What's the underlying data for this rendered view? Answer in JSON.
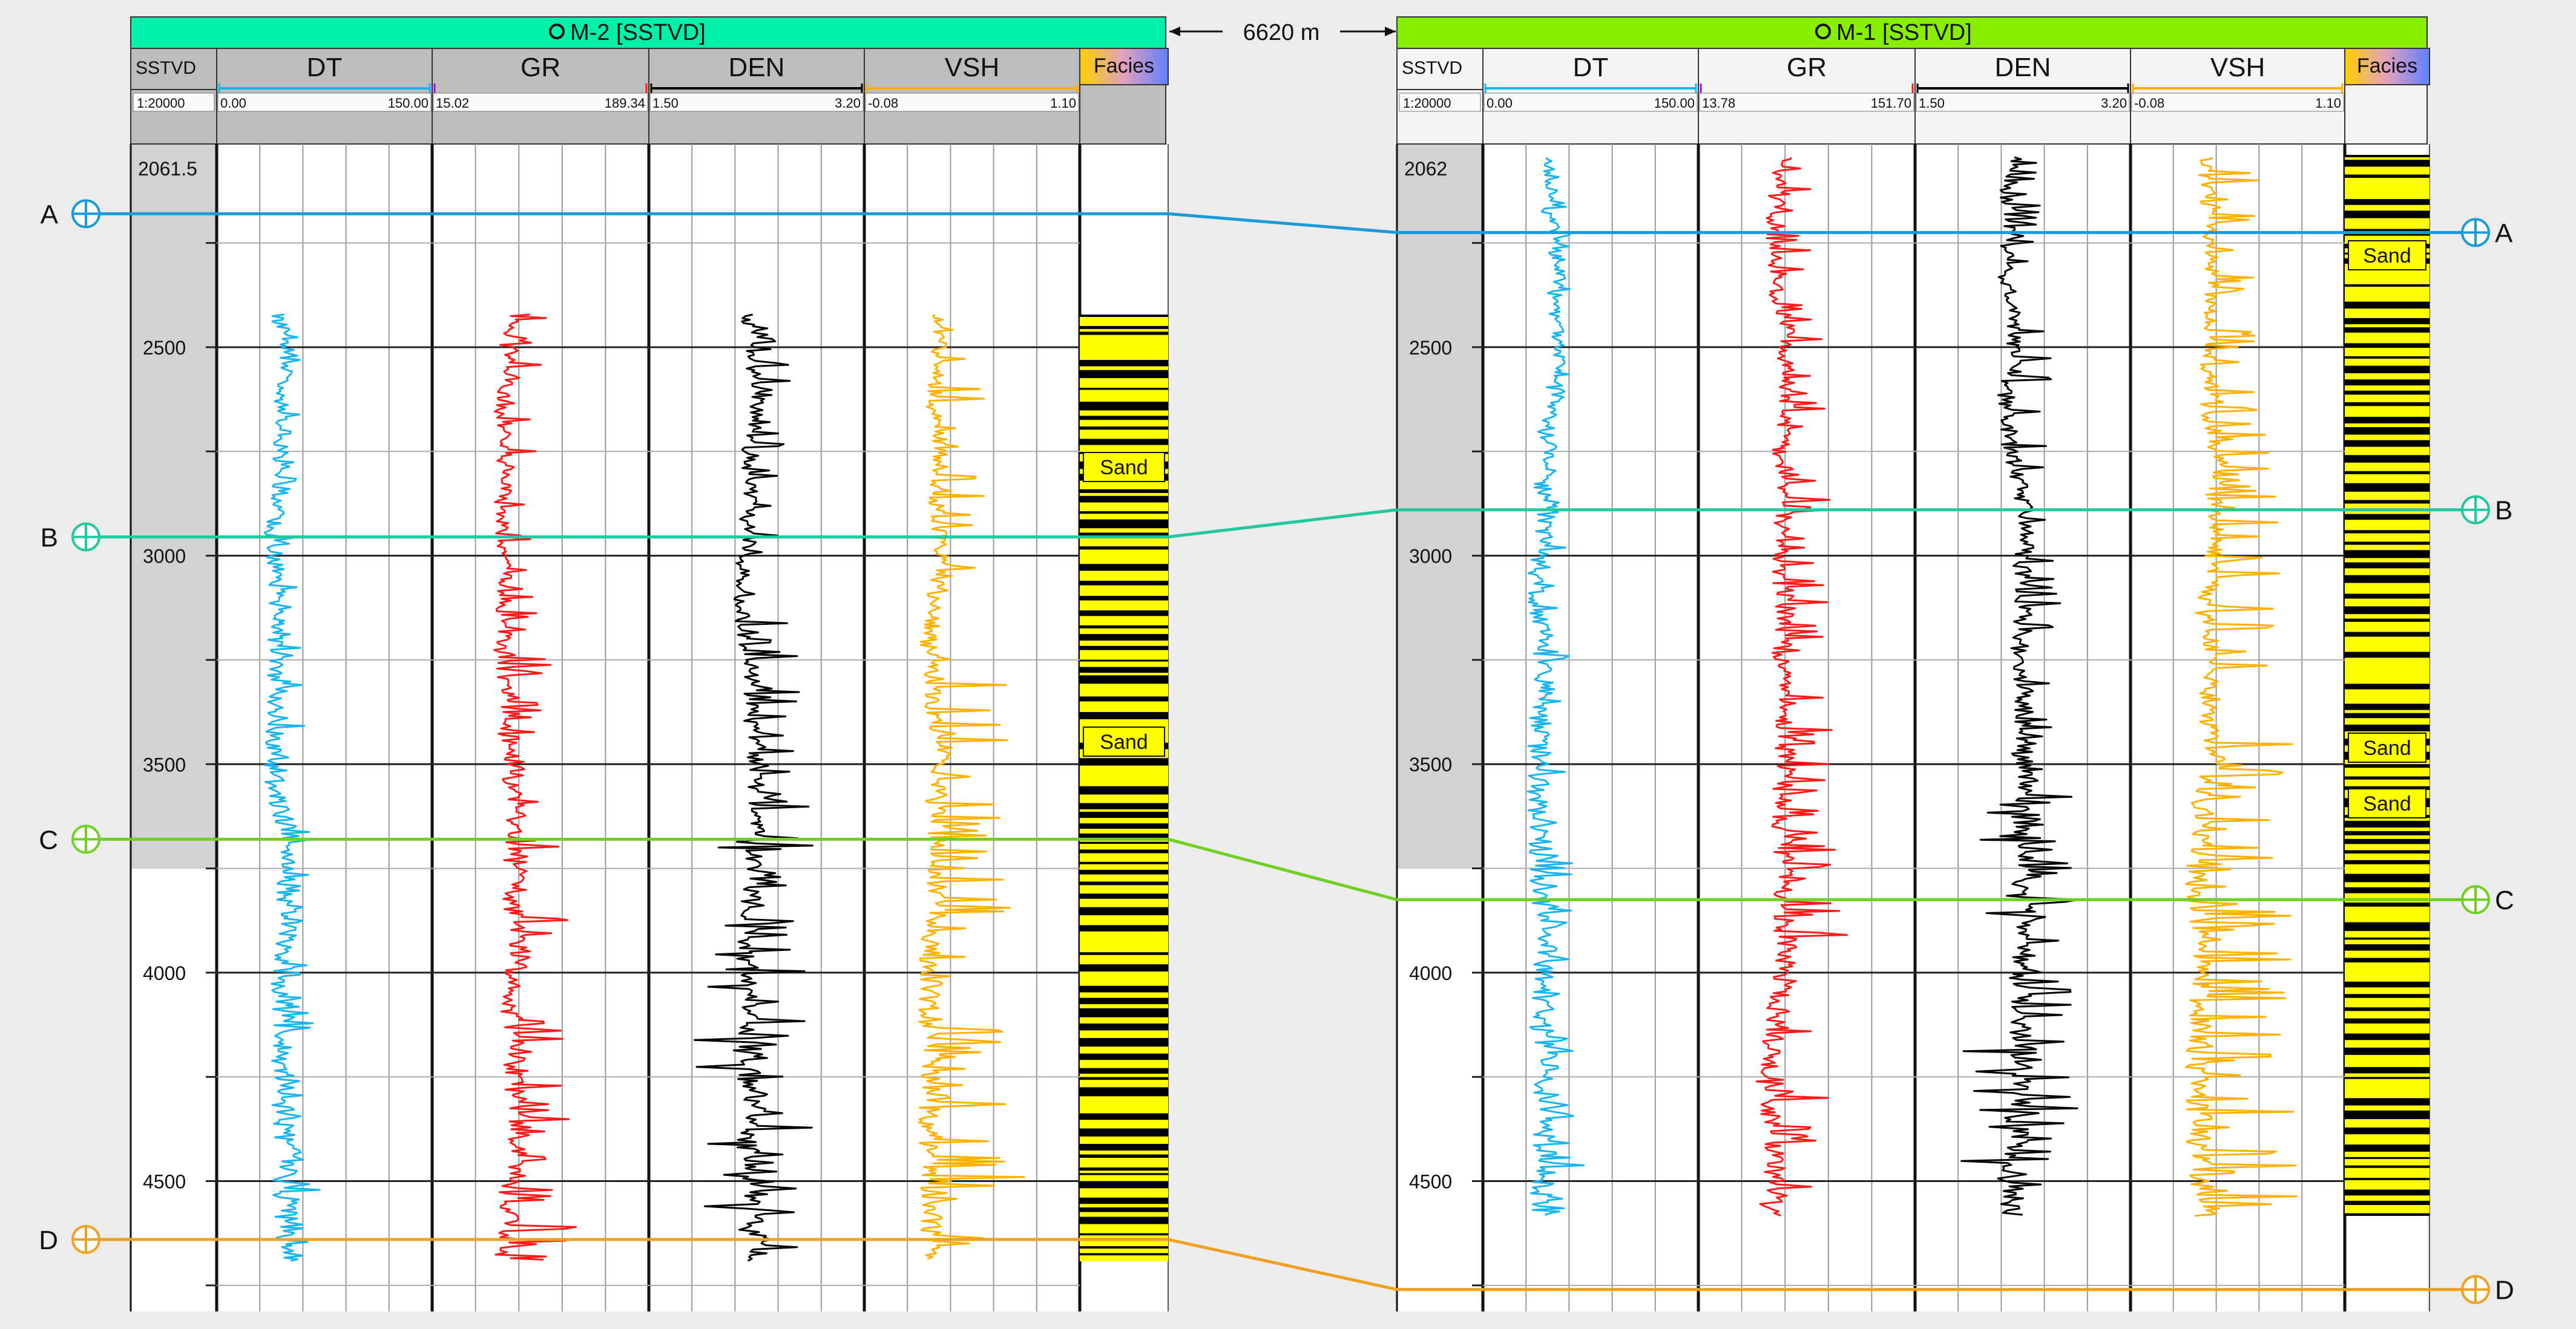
{
  "spacing_label": "6620 m",
  "colors": {
    "dt": "#18b4f0",
    "gr": "#ff1a1a",
    "den": "#000000",
    "vsh": "#ffb000",
    "facies_sand": "#ffff00",
    "facies_shale": "#000000",
    "header_m2": "#00f0a8",
    "header_m1": "#88ee00",
    "horizon_A": "#1a9ad8",
    "horizon_B": "#20c8a0",
    "horizon_C": "#70d020",
    "horizon_D": "#f0a020"
  },
  "wells": [
    {
      "id": "m2",
      "title": "M-2 [SSTVD]",
      "depth_col_label": "SSTVD",
      "scale": "1:20000",
      "top_depth_label": "2061.5",
      "depth_ticks": [
        "2500",
        "3000",
        "3500",
        "4000",
        "4500"
      ],
      "tracks": [
        {
          "key": "dt",
          "name": "DT",
          "min": "0.00",
          "max": "150.00"
        },
        {
          "key": "gr",
          "name": "GR",
          "min": "15.02",
          "max": "189.34"
        },
        {
          "key": "den",
          "name": "DEN",
          "min": "1.50",
          "max": "3.20"
        },
        {
          "key": "vsh",
          "name": "VSH",
          "min": "-0.08",
          "max": "1.10"
        }
      ],
      "facies_label": "Facies",
      "sand_labels": [
        "Sand",
        "Sand"
      ],
      "horizon_flags": [
        "A",
        "B",
        "C",
        "D"
      ]
    },
    {
      "id": "m1",
      "title": "M-1 [SSTVD]",
      "depth_col_label": "SSTVD",
      "scale": "1:20000",
      "top_depth_label": "2062",
      "depth_ticks": [
        "2500",
        "3000",
        "3500",
        "4000",
        "4500"
      ],
      "tracks": [
        {
          "key": "dt",
          "name": "DT",
          "min": "0.00",
          "max": "150.00"
        },
        {
          "key": "gr",
          "name": "GR",
          "min": "13.78",
          "max": "151.70"
        },
        {
          "key": "den",
          "name": "DEN",
          "min": "1.50",
          "max": "3.20"
        },
        {
          "key": "vsh",
          "name": "VSH",
          "min": "-0.08",
          "max": "1.10"
        }
      ],
      "facies_label": "Facies",
      "sand_labels": [
        "Sand",
        "Sand",
        "Sand"
      ],
      "horizon_flags": [
        "A",
        "B",
        "C",
        "D"
      ]
    }
  ],
  "horizons": [
    {
      "name": "A",
      "m2_depth": 2180,
      "m1_depth": 2225
    },
    {
      "name": "B",
      "m2_depth": 2955,
      "m1_depth": 2890
    },
    {
      "name": "C",
      "m2_depth": 3680,
      "m1_depth": 3825
    },
    {
      "name": "D",
      "m2_depth": 4640,
      "m1_depth": 4760
    }
  ]
}
